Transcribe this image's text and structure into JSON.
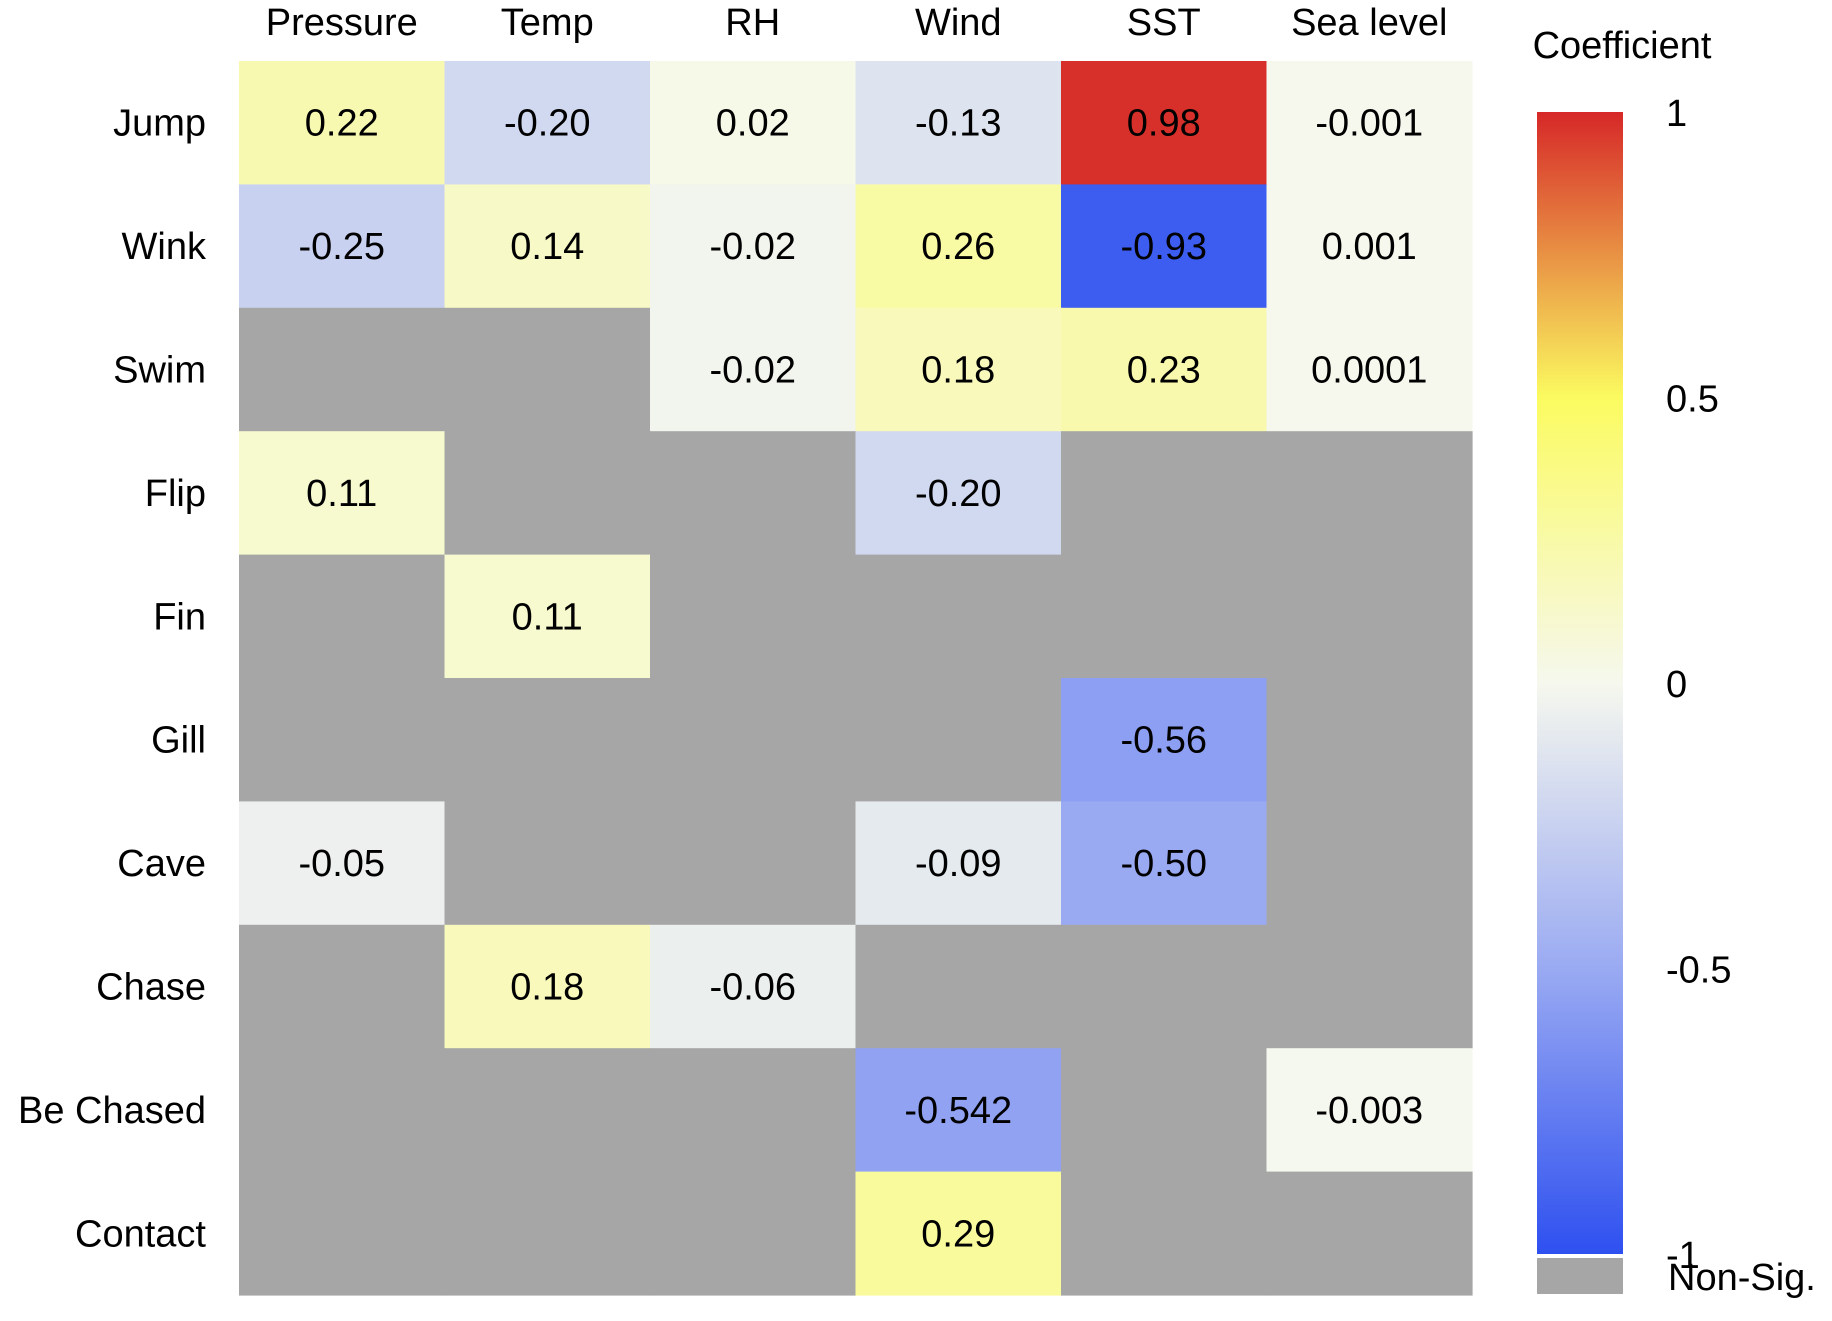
{
  "chart_data": {
    "type": "heatmap",
    "columns": [
      "Pressure",
      "Temp",
      "RH",
      "Wind",
      "SST",
      "Sea level"
    ],
    "rows": [
      "Jump",
      "Wink",
      "Swim",
      "Flip",
      "Fin",
      "Gill",
      "Cave",
      "Chase",
      "Be Chased",
      "Contact"
    ],
    "values": [
      [
        0.22,
        -0.2,
        0.02,
        -0.13,
        0.98,
        -0.001
      ],
      [
        -0.25,
        0.14,
        -0.02,
        0.26,
        -0.93,
        0.001
      ],
      [
        null,
        null,
        -0.02,
        0.18,
        0.23,
        0.0001
      ],
      [
        0.11,
        null,
        null,
        -0.2,
        null,
        null
      ],
      [
        null,
        0.11,
        null,
        null,
        null,
        null
      ],
      [
        null,
        null,
        null,
        null,
        -0.56,
        null
      ],
      [
        -0.05,
        null,
        null,
        -0.09,
        -0.5,
        null
      ],
      [
        null,
        0.18,
        -0.06,
        null,
        null,
        null
      ],
      [
        null,
        null,
        null,
        -0.542,
        null,
        -0.003
      ],
      [
        null,
        null,
        null,
        0.29,
        null,
        null
      ]
    ],
    "labels": [
      [
        "0.22",
        "-0.20",
        "0.02",
        "-0.13",
        "0.98",
        "-0.001"
      ],
      [
        "-0.25",
        "0.14",
        "-0.02",
        "0.26",
        "-0.93",
        "0.001"
      ],
      [
        "",
        "",
        "-0.02",
        "0.18",
        "0.23",
        "0.0001"
      ],
      [
        "0.11",
        "",
        "",
        "-0.20",
        "",
        ""
      ],
      [
        "",
        "0.11",
        "",
        "",
        "",
        ""
      ],
      [
        "",
        "",
        "",
        "",
        "-0.56",
        ""
      ],
      [
        "-0.05",
        "",
        "",
        "-0.09",
        "-0.50",
        ""
      ],
      [
        "",
        "0.18",
        "-0.06",
        "",
        "",
        ""
      ],
      [
        "",
        "",
        "",
        "-0.542",
        "",
        "-0.003"
      ],
      [
        "",
        "",
        "",
        "0.29",
        "",
        ""
      ]
    ],
    "color_scale": {
      "range": [
        -1,
        1
      ],
      "stops": [
        {
          "value": -1,
          "color": "#2e50f0"
        },
        {
          "value": -0.5,
          "color": "#9aaaf2"
        },
        {
          "value": 0,
          "color": "#f6f8ee"
        },
        {
          "value": 0.5,
          "color": "#fbfb60"
        },
        {
          "value": 1,
          "color": "#d62828"
        }
      ],
      "non_sig_color": "#a6a6a6"
    },
    "legend": {
      "title": "Coefficient",
      "ticks": [
        "1",
        "0.5",
        "0",
        "-0.5",
        "-1"
      ],
      "tick_values": [
        1,
        0.5,
        0,
        -0.5,
        -1
      ],
      "non_sig_label": "Non-Sig.",
      "placement": "right"
    }
  }
}
